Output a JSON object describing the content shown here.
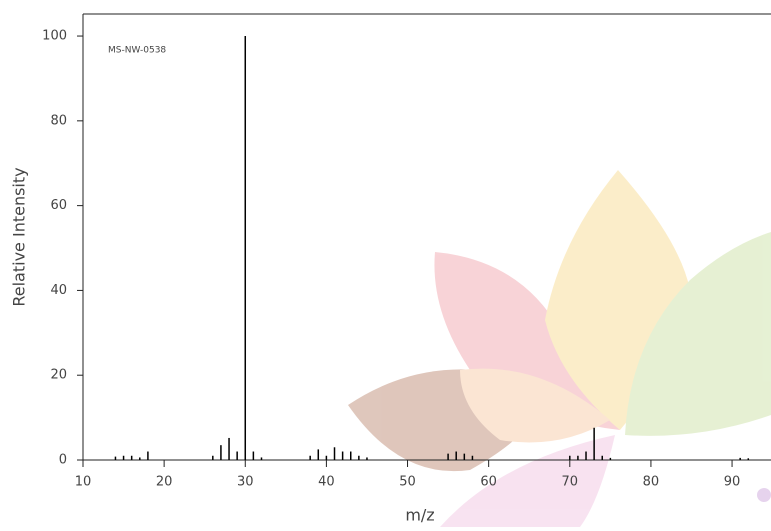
{
  "chart_data": {
    "type": "stem",
    "annotation": "MS-NW-0538",
    "x_label": "m/z",
    "y_label": "Relative Intensity",
    "color": "#000000",
    "x": [
      14,
      15,
      16,
      17,
      18,
      26,
      27,
      28,
      29,
      30,
      31,
      32,
      38,
      39,
      40,
      41,
      42,
      43,
      44,
      45,
      55,
      56,
      57,
      58,
      70,
      71,
      72,
      73,
      74,
      75,
      91,
      92
    ],
    "values": [
      0.8,
      1,
      1,
      0.6,
      2,
      1,
      3.5,
      5.2,
      2,
      100,
      2,
      0.6,
      1,
      2.5,
      1,
      3,
      2,
      2,
      1,
      0.6,
      1.5,
      2,
      1.5,
      1,
      1,
      1,
      2,
      7.6,
      1,
      0.5,
      0.5,
      0.4
    ],
    "xlim": [
      10,
      94.8
    ],
    "ylim": [
      0,
      105.2
    ],
    "xticks": [
      10,
      20,
      30,
      40,
      50,
      60,
      70,
      80,
      90
    ],
    "yticks": [
      0,
      20,
      40,
      60,
      80,
      100
    ]
  }
}
